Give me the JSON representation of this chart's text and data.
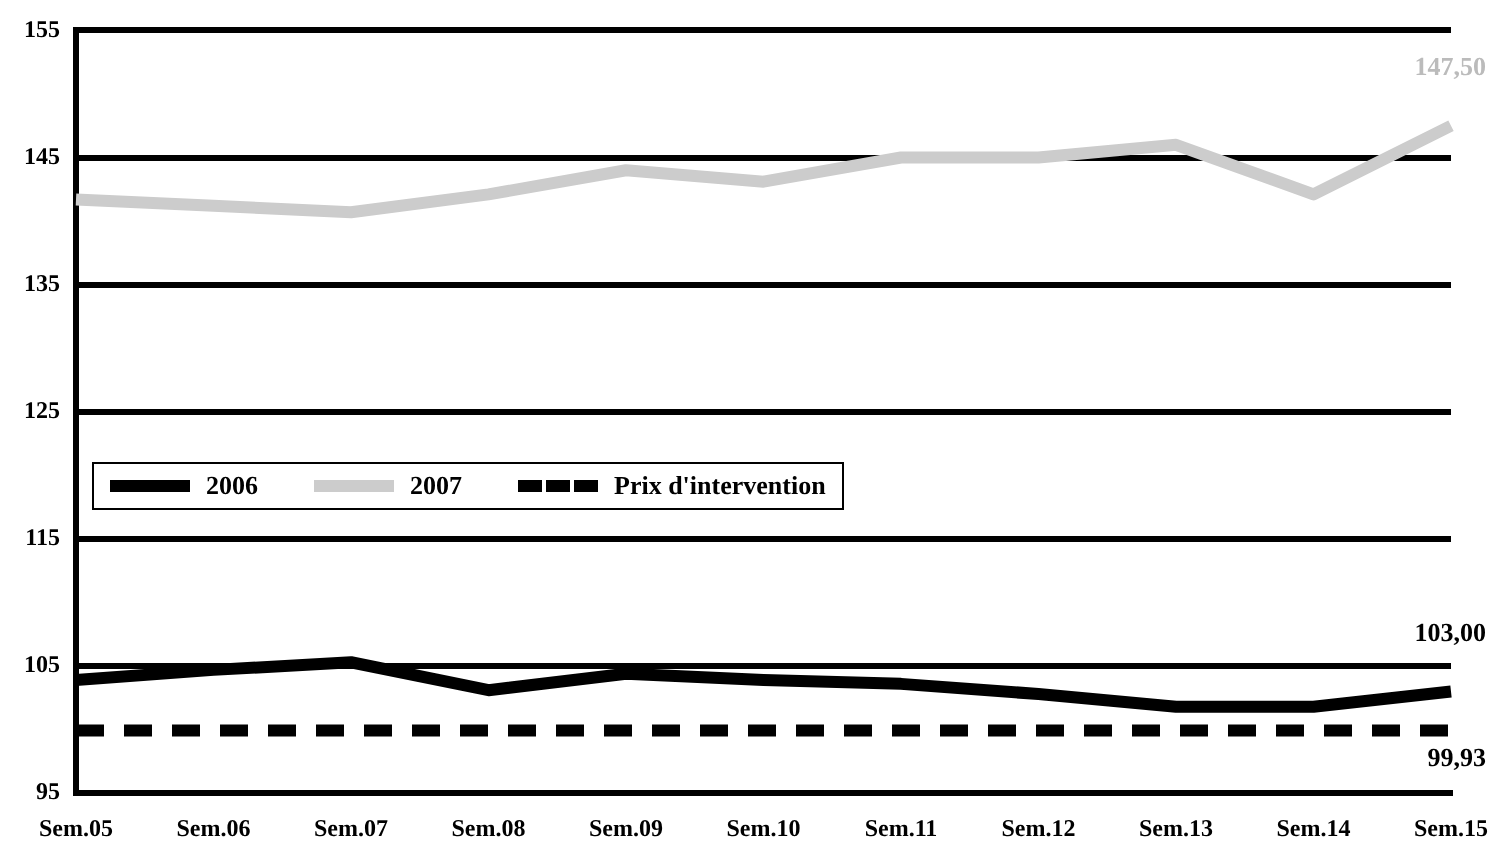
{
  "chart_data": {
    "type": "line",
    "categories": [
      "Sem.05",
      "Sem.06",
      "Sem.07",
      "Sem.08",
      "Sem.09",
      "Sem.10",
      "Sem.11",
      "Sem.12",
      "Sem.13",
      "Sem.14",
      "Sem.15"
    ],
    "series": [
      {
        "name": "2006",
        "color": "#000000",
        "values": [
          103.9,
          104.7,
          105.3,
          103.1,
          104.4,
          103.9,
          103.6,
          102.8,
          101.8,
          101.8,
          103.0
        ],
        "value_labels": [
          null,
          null,
          null,
          null,
          null,
          null,
          null,
          null,
          null,
          null,
          "103,00"
        ]
      },
      {
        "name": "2007",
        "color": "#cccccc",
        "values": [
          141.7,
          141.2,
          140.7,
          142.1,
          144.0,
          143.1,
          145.0,
          145.0,
          146.0,
          142.1,
          147.5
        ],
        "value_labels": [
          null,
          null,
          null,
          null,
          null,
          null,
          null,
          null,
          null,
          null,
          "147,50"
        ]
      },
      {
        "name": "Prix d'intervention",
        "color": "#000000",
        "line_style": "dashed",
        "values": [
          99.93,
          99.93,
          99.93,
          99.93,
          99.93,
          99.93,
          99.93,
          99.93,
          99.93,
          99.93,
          99.93
        ],
        "value_labels": [
          null,
          null,
          null,
          null,
          null,
          null,
          null,
          null,
          null,
          null,
          "99,93"
        ]
      }
    ],
    "ylim": [
      95,
      155
    ],
    "yticks": [
      95,
      105,
      115,
      125,
      135,
      145,
      155
    ],
    "grid": "y",
    "legend": "left",
    "marker": "none"
  }
}
